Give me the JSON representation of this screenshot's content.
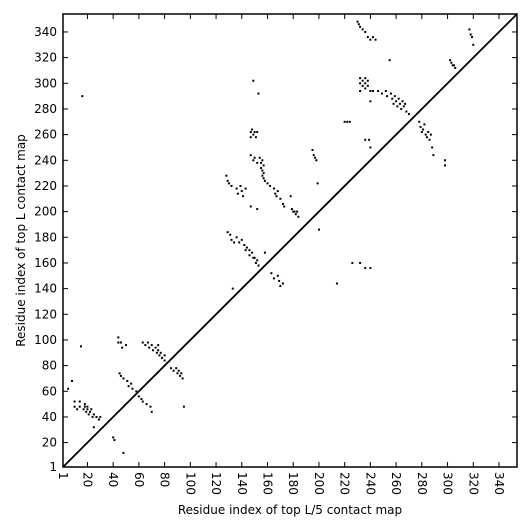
{
  "chart_data": {
    "type": "scatter",
    "title": "",
    "xlabel": "Residue index of top L/5 contact map",
    "ylabel": "Residue index of top L contact map",
    "xlim": [
      1,
      354
    ],
    "ylim": [
      1,
      354
    ],
    "x_ticks": [
      1,
      20,
      40,
      60,
      80,
      100,
      120,
      140,
      160,
      180,
      200,
      220,
      240,
      260,
      280,
      300,
      320,
      340
    ],
    "y_ticks": [
      1,
      20,
      40,
      60,
      80,
      100,
      120,
      140,
      160,
      180,
      200,
      220,
      240,
      260,
      280,
      300,
      320,
      340
    ],
    "grid": false,
    "legend": "none",
    "diagonal": {
      "from": [
        1,
        1
      ],
      "to": [
        354,
        354
      ]
    },
    "marker_color": "#000000",
    "series": [
      {
        "points": [
          [
            5,
            62
          ],
          [
            8,
            68
          ],
          [
            10,
            48
          ],
          [
            10,
            52
          ],
          [
            12,
            46
          ],
          [
            14,
            48
          ],
          [
            14,
            52
          ],
          [
            15,
            95
          ],
          [
            16,
            290
          ],
          [
            17,
            46
          ],
          [
            18,
            48
          ],
          [
            18,
            50
          ],
          [
            19,
            44
          ],
          [
            20,
            46
          ],
          [
            20,
            48
          ],
          [
            21,
            42
          ],
          [
            22,
            44
          ],
          [
            23,
            46
          ],
          [
            24,
            40
          ],
          [
            25,
            42
          ],
          [
            25,
            32
          ],
          [
            27,
            40
          ],
          [
            29,
            38
          ],
          [
            30,
            40
          ],
          [
            40,
            24
          ],
          [
            41,
            22
          ],
          [
            44,
            102
          ],
          [
            44,
            98
          ],
          [
            45,
            74
          ],
          [
            46,
            98
          ],
          [
            46,
            72
          ],
          [
            47,
            94
          ],
          [
            48,
            70
          ],
          [
            48,
            12
          ],
          [
            50,
            96
          ],
          [
            51,
            68
          ],
          [
            52,
            64
          ],
          [
            54,
            66
          ],
          [
            55,
            62
          ],
          [
            58,
            60
          ],
          [
            60,
            56
          ],
          [
            62,
            54
          ],
          [
            63,
            98
          ],
          [
            63,
            52
          ],
          [
            65,
            96
          ],
          [
            66,
            50
          ],
          [
            67,
            98
          ],
          [
            68,
            94
          ],
          [
            69,
            48
          ],
          [
            70,
            96
          ],
          [
            70,
            44
          ],
          [
            71,
            92
          ],
          [
            73,
            94
          ],
          [
            74,
            90
          ],
          [
            75,
            96
          ],
          [
            75,
            92
          ],
          [
            76,
            88
          ],
          [
            77,
            90
          ],
          [
            78,
            86
          ],
          [
            80,
            88
          ],
          [
            80,
            84
          ],
          [
            85,
            78
          ],
          [
            87,
            76
          ],
          [
            89,
            78
          ],
          [
            90,
            74
          ],
          [
            91,
            76
          ],
          [
            92,
            72
          ],
          [
            93,
            74
          ],
          [
            94,
            70
          ],
          [
            95,
            48
          ],
          [
            128,
            228
          ],
          [
            129,
            224
          ],
          [
            129,
            184
          ],
          [
            130,
            222
          ],
          [
            131,
            182
          ],
          [
            132,
            220
          ],
          [
            132,
            178
          ],
          [
            133,
            140
          ],
          [
            134,
            176
          ],
          [
            136,
            218
          ],
          [
            136,
            180
          ],
          [
            137,
            214
          ],
          [
            138,
            176
          ],
          [
            139,
            220
          ],
          [
            140,
            216
          ],
          [
            140,
            178
          ],
          [
            141,
            212
          ],
          [
            142,
            174
          ],
          [
            143,
            218
          ],
          [
            143,
            170
          ],
          [
            144,
            172
          ],
          [
            146,
            170
          ],
          [
            146,
            166
          ],
          [
            147,
            262
          ],
          [
            147,
            258
          ],
          [
            147,
            244
          ],
          [
            147,
            204
          ],
          [
            148,
            264
          ],
          [
            148,
            168
          ],
          [
            149,
            302
          ],
          [
            149,
            260
          ],
          [
            149,
            240
          ],
          [
            149,
            164
          ],
          [
            150,
            262
          ],
          [
            150,
            242
          ],
          [
            150,
            164
          ],
          [
            151,
            258
          ],
          [
            151,
            160
          ],
          [
            152,
            262
          ],
          [
            152,
            238
          ],
          [
            152,
            202
          ],
          [
            152,
            162
          ],
          [
            153,
            292
          ],
          [
            153,
            158
          ],
          [
            154,
            242
          ],
          [
            155,
            238
          ],
          [
            155,
            234
          ],
          [
            156,
            240
          ],
          [
            156,
            232
          ],
          [
            156,
            228
          ],
          [
            157,
            236
          ],
          [
            157,
            230
          ],
          [
            157,
            226
          ],
          [
            158,
            224
          ],
          [
            158,
            168
          ],
          [
            160,
            222
          ],
          [
            162,
            220
          ],
          [
            163,
            152
          ],
          [
            165,
            218
          ],
          [
            165,
            148
          ],
          [
            166,
            214
          ],
          [
            167,
            212
          ],
          [
            168,
            216
          ],
          [
            168,
            150
          ],
          [
            169,
            146
          ],
          [
            170,
            210
          ],
          [
            170,
            142
          ],
          [
            172,
            206
          ],
          [
            172,
            144
          ],
          [
            173,
            204
          ],
          [
            178,
            212
          ],
          [
            179,
            202
          ],
          [
            180,
            200
          ],
          [
            181,
            200
          ],
          [
            182,
            198
          ],
          [
            183,
            200
          ],
          [
            184,
            196
          ],
          [
            195,
            248
          ],
          [
            196,
            244
          ],
          [
            197,
            242
          ],
          [
            198,
            240
          ],
          [
            199,
            222
          ],
          [
            200,
            186
          ],
          [
            214,
            144
          ],
          [
            220,
            270
          ],
          [
            222,
            270
          ],
          [
            224,
            270
          ],
          [
            226,
            160
          ],
          [
            230,
            348
          ],
          [
            231,
            346
          ],
          [
            232,
            344
          ],
          [
            232,
            304
          ],
          [
            232,
            300
          ],
          [
            232,
            294
          ],
          [
            232,
            160
          ],
          [
            234,
            342
          ],
          [
            234,
            302
          ],
          [
            234,
            298
          ],
          [
            236,
            340
          ],
          [
            236,
            304
          ],
          [
            236,
            300
          ],
          [
            236,
            296
          ],
          [
            236,
            256
          ],
          [
            236,
            156
          ],
          [
            238,
            336
          ],
          [
            238,
            302
          ],
          [
            238,
            298
          ],
          [
            239,
            256
          ],
          [
            240,
            334
          ],
          [
            240,
            294
          ],
          [
            240,
            286
          ],
          [
            240,
            250
          ],
          [
            240,
            156
          ],
          [
            242,
            336
          ],
          [
            242,
            294
          ],
          [
            244,
            334
          ],
          [
            246,
            294
          ],
          [
            249,
            292
          ],
          [
            252,
            294
          ],
          [
            253,
            290
          ],
          [
            255,
            318
          ],
          [
            256,
            292
          ],
          [
            257,
            288
          ],
          [
            258,
            284
          ],
          [
            259,
            290
          ],
          [
            260,
            286
          ],
          [
            261,
            282
          ],
          [
            262,
            288
          ],
          [
            263,
            284
          ],
          [
            264,
            280
          ],
          [
            265,
            286
          ],
          [
            266,
            282
          ],
          [
            267,
            284
          ],
          [
            268,
            278
          ],
          [
            270,
            276
          ],
          [
            278,
            270
          ],
          [
            279,
            266
          ],
          [
            280,
            262
          ],
          [
            281,
            264
          ],
          [
            282,
            268
          ],
          [
            283,
            260
          ],
          [
            284,
            258
          ],
          [
            285,
            262
          ],
          [
            286,
            256
          ],
          [
            287,
            260
          ],
          [
            288,
            250
          ],
          [
            289,
            244
          ],
          [
            298,
            236
          ],
          [
            298,
            240
          ],
          [
            302,
            318
          ],
          [
            303,
            316
          ],
          [
            304,
            314
          ],
          [
            305,
            314
          ],
          [
            306,
            312
          ],
          [
            317,
            342
          ],
          [
            318,
            338
          ],
          [
            319,
            336
          ],
          [
            320,
            330
          ]
        ]
      }
    ]
  }
}
